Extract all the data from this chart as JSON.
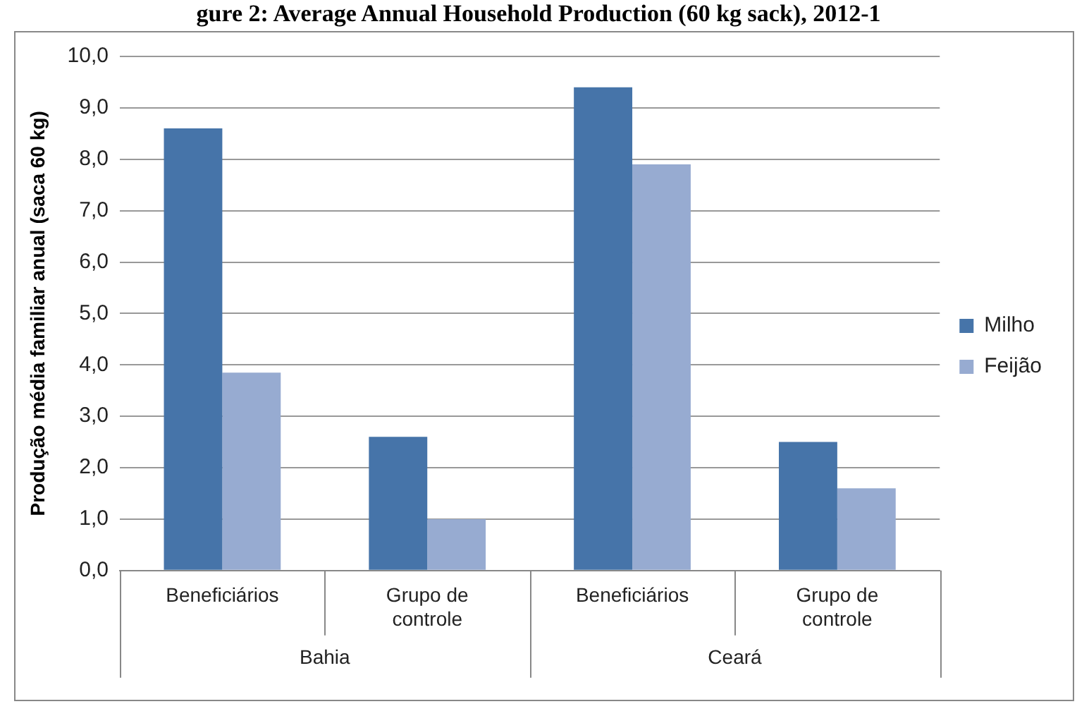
{
  "chart_data": {
    "type": "bar",
    "title": "gure 2: Average Annual Household Production (60 kg sack), 2012-1",
    "ylabel": "Produção média familiar anual (saca 60 kg)",
    "categories": [
      "Beneficiários",
      "Grupo de controle",
      "Beneficiários",
      "Grupo de controle"
    ],
    "series": [
      {
        "name": "Milho",
        "color": "#4674a9",
        "values": [
          8.6,
          2.6,
          9.4,
          2.5
        ]
      },
      {
        "name": "Feijão",
        "color": "#97abd1",
        "values": [
          3.85,
          1.0,
          7.9,
          1.6
        ]
      }
    ],
    "annotations": [
      "Bahia",
      "Ceará"
    ],
    "ylim": [
      0,
      10
    ],
    "yticks": [
      {
        "value": 0,
        "label": "0,0"
      },
      {
        "value": 1,
        "label": "1,0"
      },
      {
        "value": 2,
        "label": "2,0"
      },
      {
        "value": 3,
        "label": "3,0"
      },
      {
        "value": 4,
        "label": "4,0"
      },
      {
        "value": 5,
        "label": "5,0"
      },
      {
        "value": 6,
        "label": "6,0"
      },
      {
        "value": 7,
        "label": "7,0"
      },
      {
        "value": 8,
        "label": "8,0"
      },
      {
        "value": 9,
        "label": "9,0"
      },
      {
        "value": 10,
        "label": "10,0"
      }
    ],
    "grid": "y",
    "legend": "right"
  }
}
